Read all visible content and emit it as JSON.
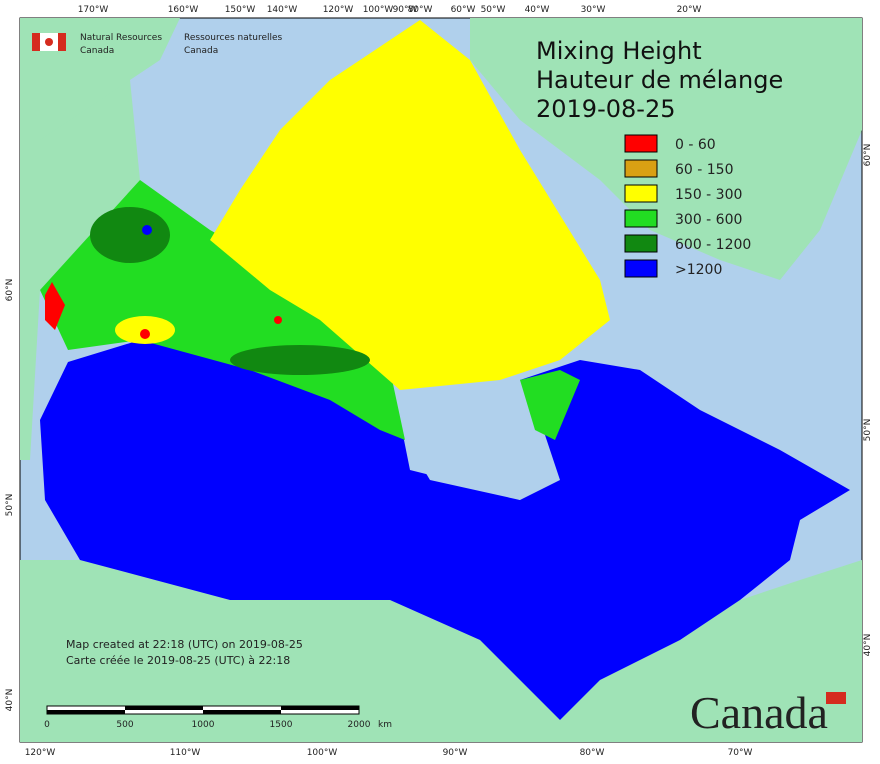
{
  "logo": {
    "en_line1": "Natural Resources",
    "en_line2": "Canada",
    "fr_line1": "Ressources naturelles",
    "fr_line2": "Canada"
  },
  "title": {
    "line1": "Mixing Height",
    "line2": "Hauteur de mélange",
    "date": "2019-08-25"
  },
  "legend": [
    {
      "label": "0 - 60",
      "color": "#ff0000"
    },
    {
      "label": "60 - 150",
      "color": "#d9a013"
    },
    {
      "label": "150 - 300",
      "color": "#ffff00"
    },
    {
      "label": "300 - 600",
      "color": "#22dd22"
    },
    {
      "label": "600 - 1200",
      "color": "#118811"
    },
    {
      "label": ">1200",
      "color": "#0000ff"
    }
  ],
  "top_labels": [
    "170°W",
    "160°W",
    "150°W",
    "140°W",
    "120°W",
    "100°W",
    "90°W",
    "80°W",
    "60°W",
    "50°W",
    "40°W",
    "30°W",
    "20°W"
  ],
  "bottom_labels": [
    "120°W",
    "110°W",
    "100°W",
    "90°W",
    "80°W",
    "70°W"
  ],
  "left_labels": [
    "60°N",
    "50°N",
    "40°N"
  ],
  "right_labels": [
    "60°N",
    "50°N",
    "40°N"
  ],
  "credits": {
    "en": "Map created at 22:18 (UTC) on 2019-08-25",
    "fr": "Carte créée le 2019-08-25 (UTC) à 22:18"
  },
  "scale_bar": {
    "ticks": [
      "0",
      "500",
      "1000",
      "1500",
      "2000"
    ],
    "unit": "km"
  },
  "wordmark": "Canada"
}
